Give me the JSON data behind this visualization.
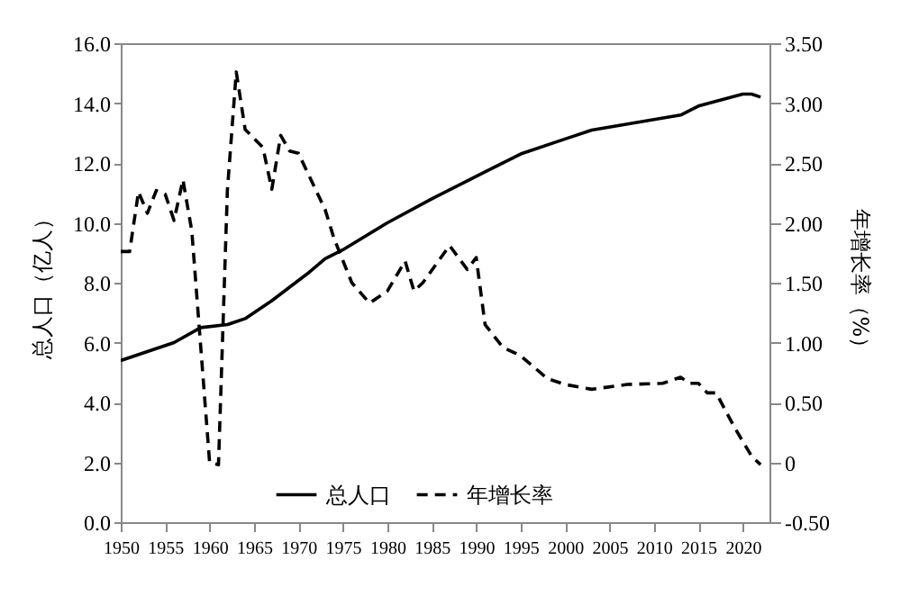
{
  "chart_data": {
    "type": "line",
    "xlabel": null,
    "ylabel": "总人口（亿人）",
    "y2label": "年增长率（%）",
    "series": [
      {
        "name": "总人口",
        "color": "#000000",
        "line_style": "solid",
        "x": [
          1950,
          1956,
          1959,
          1962,
          1964,
          1967,
          1971,
          1973,
          1975,
          1980,
          1985,
          1989,
          1991,
          1995,
          2000,
          2003,
          2013,
          2015,
          2020,
          2021,
          2022
        ],
        "values": [
          5.4,
          6.0,
          6.5,
          6.6,
          6.8,
          7.4,
          8.3,
          8.8,
          9.1,
          10.0,
          10.8,
          11.4,
          11.7,
          12.3,
          12.8,
          13.1,
          13.6,
          13.9,
          14.3,
          14.3,
          14.2
        ]
      },
      {
        "name": "年增长率",
        "color": "#000000",
        "line_style": "dashed",
        "axis": "y2",
        "x": [
          1950,
          1951,
          1952,
          1953,
          1954,
          1955,
          1956,
          1957,
          1958,
          1960,
          1961,
          1962,
          1963,
          1964,
          1966,
          1967,
          1968,
          1969,
          1970,
          1973,
          1974,
          1976,
          1978,
          1980,
          1982,
          1983,
          1984,
          1987,
          1989,
          1990,
          1991,
          1993,
          1995,
          1998,
          2000,
          2003,
          2007,
          2011,
          2013,
          2014,
          2015,
          2016,
          2017,
          2019,
          2021,
          2022
        ],
        "values": [
          1.76,
          1.76,
          2.26,
          2.08,
          2.27,
          2.24,
          2.02,
          2.36,
          1.93,
          0.0,
          -0.02,
          2.27,
          3.26,
          2.78,
          2.63,
          2.28,
          2.73,
          2.6,
          2.58,
          2.11,
          1.87,
          1.5,
          1.33,
          1.43,
          1.68,
          1.43,
          1.5,
          1.81,
          1.61,
          1.71,
          1.15,
          0.96,
          0.89,
          0.7,
          0.65,
          0.61,
          0.65,
          0.66,
          0.71,
          0.66,
          0.66,
          0.58,
          0.58,
          0.3,
          0.05,
          -0.02
        ]
      }
    ],
    "xlim": [
      1950,
      2023
    ],
    "xticks": [
      1950,
      1955,
      1960,
      1965,
      1970,
      1975,
      1980,
      1985,
      1990,
      1995,
      2000,
      2005,
      2010,
      2015,
      2020
    ],
    "ylim": [
      0,
      16
    ],
    "yticks": [
      {
        "value": 0,
        "label": "0.0"
      },
      {
        "value": 2,
        "label": "2.0"
      },
      {
        "value": 4,
        "label": "4.0"
      },
      {
        "value": 6,
        "label": "6.0"
      },
      {
        "value": 8,
        "label": "8.0"
      },
      {
        "value": 10,
        "label": "10.0"
      },
      {
        "value": 12,
        "label": "12.0"
      },
      {
        "value": 14,
        "label": "14.0"
      },
      {
        "value": 16,
        "label": "16.0"
      }
    ],
    "y2lim": [
      -0.5,
      3.5
    ],
    "y2ticks": [
      {
        "value": -0.5,
        "label": "-0.50"
      },
      {
        "value": 0,
        "label": "0"
      },
      {
        "value": 0.5,
        "label": "0.50"
      },
      {
        "value": 1,
        "label": "1.00"
      },
      {
        "value": 1.5,
        "label": "1.50"
      },
      {
        "value": 2,
        "label": "2.00"
      },
      {
        "value": 2.5,
        "label": "2.50"
      },
      {
        "value": 3,
        "label": "3.00"
      },
      {
        "value": 3.5,
        "label": "3.50"
      }
    ],
    "grid": false,
    "legend": "bottom"
  }
}
